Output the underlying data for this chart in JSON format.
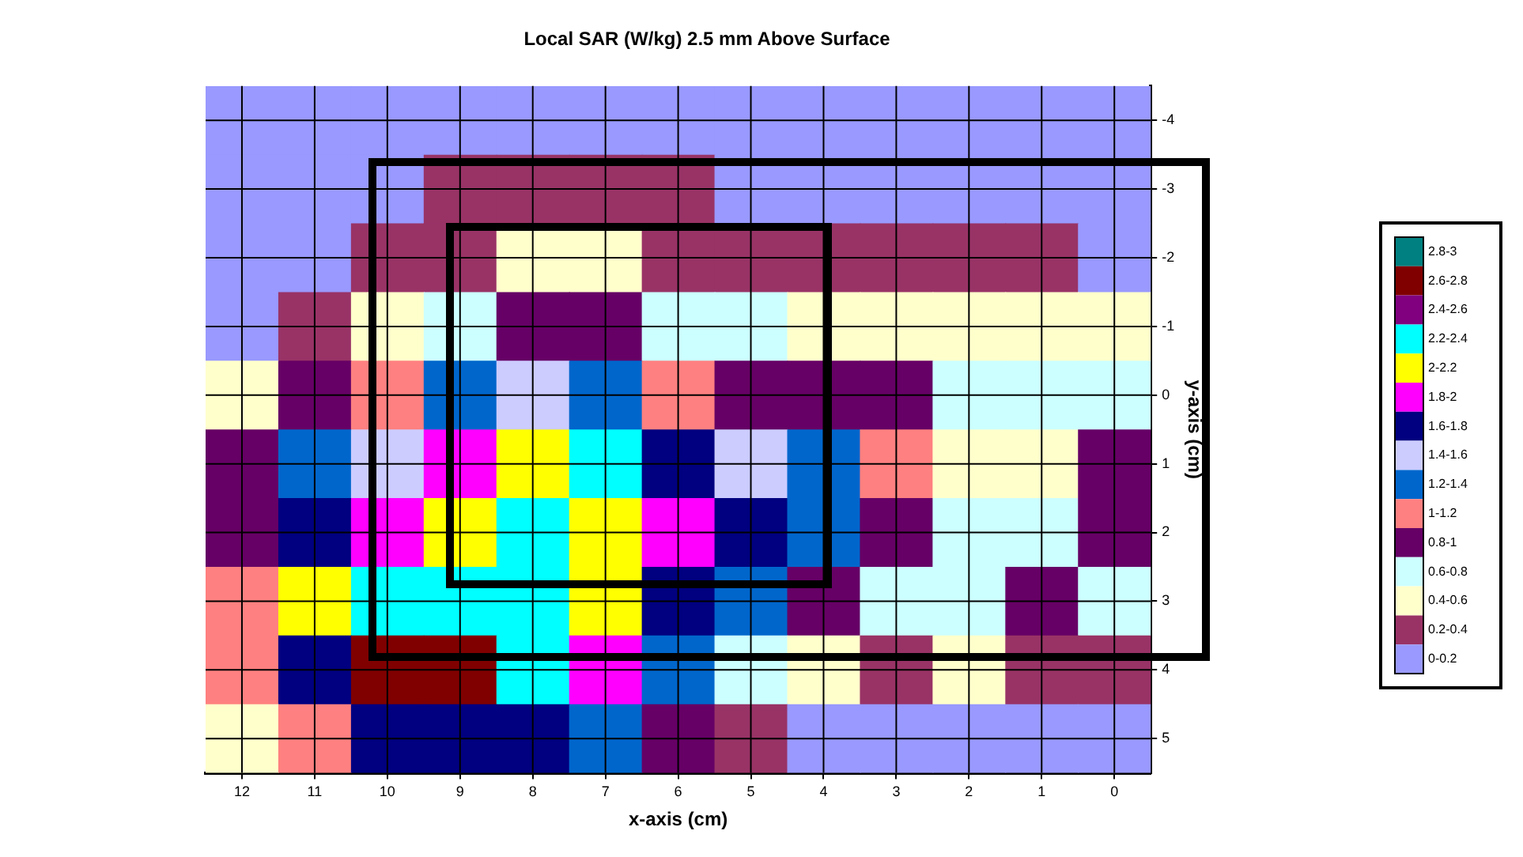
{
  "chart_data": {
    "type": "heatmap",
    "title": "Local SAR (W/kg) 2.5 mm Above Surface",
    "xlabel": "x-axis (cm)",
    "ylabel": "y-axis (cm)",
    "categories": [
      "12",
      "11",
      "10",
      "9",
      "8",
      "7",
      "6",
      "5",
      "4",
      "3",
      "2",
      "1",
      "0"
    ],
    "y_categories": [
      "-4",
      "-3",
      "-2",
      "-1",
      "0",
      "1",
      "2",
      "3",
      "4",
      "5"
    ],
    "cells": [
      [
        0.1,
        0.1,
        0.1,
        0.1,
        0.1,
        0.1,
        0.1,
        0.1,
        0.1,
        0.1,
        0.1,
        0.1,
        0.1
      ],
      [
        0.1,
        0.1,
        0.1,
        0.3,
        0.3,
        0.3,
        0.3,
        0.1,
        0.1,
        0.1,
        0.1,
        0.1,
        0.1
      ],
      [
        0.1,
        0.1,
        0.3,
        0.3,
        0.5,
        0.5,
        0.3,
        0.3,
        0.3,
        0.3,
        0.3,
        0.3,
        0.1
      ],
      [
        0.1,
        0.3,
        0.5,
        0.7,
        0.9,
        0.9,
        0.7,
        0.7,
        0.5,
        0.5,
        0.5,
        0.5,
        0.5
      ],
      [
        0.5,
        0.9,
        1.1,
        1.3,
        1.5,
        1.3,
        1.1,
        0.9,
        0.9,
        0.9,
        0.7,
        0.7,
        0.7
      ],
      [
        0.9,
        1.3,
        1.5,
        1.9,
        2.1,
        2.3,
        1.7,
        1.5,
        1.3,
        1.1,
        0.5,
        0.5,
        0.9
      ],
      [
        0.9,
        1.7,
        1.9,
        2.1,
        2.3,
        2.1,
        1.9,
        1.7,
        1.3,
        0.9,
        0.7,
        0.7,
        0.9
      ],
      [
        1.1,
        2.1,
        2.3,
        2.3,
        2.3,
        2.1,
        1.7,
        1.3,
        0.9,
        0.7,
        0.7,
        0.9,
        0.7
      ],
      [
        1.1,
        1.7,
        2.7,
        2.7,
        2.3,
        1.9,
        1.3,
        0.7,
        0.5,
        0.3,
        0.5,
        0.3,
        0.3
      ],
      [
        0.5,
        1.1,
        1.7,
        1.7,
        1.7,
        1.3,
        0.9,
        0.3,
        0.1,
        0.1,
        0.1,
        0.1,
        0.1
      ]
    ],
    "grid": true,
    "clim": [
      0,
      3
    ],
    "cticks": [
      {
        "value": 2.9,
        "label": "2.8-3"
      },
      {
        "value": 2.7,
        "label": "2.6-2.8"
      },
      {
        "value": 2.5,
        "label": "2.4-2.6"
      },
      {
        "value": 2.3,
        "label": "2.2-2.4"
      },
      {
        "value": 2.1,
        "label": "2-2.2"
      },
      {
        "value": 1.9,
        "label": "1.8-2"
      },
      {
        "value": 1.7,
        "label": "1.6-1.8"
      },
      {
        "value": 1.5,
        "label": "1.4-1.6"
      },
      {
        "value": 1.3,
        "label": "1.2-1.4"
      },
      {
        "value": 1.1,
        "label": "1-1.2"
      },
      {
        "value": 0.9,
        "label": "0.8-1"
      },
      {
        "value": 0.7,
        "label": "0.6-0.8"
      },
      {
        "value": 0.5,
        "label": "0.4-0.6"
      },
      {
        "value": 0.3,
        "label": "0.2-0.4"
      },
      {
        "value": 0.1,
        "label": "0-0.2"
      }
    ],
    "colors": [
      "#008080",
      "#800000",
      "#800080",
      "#00ffff",
      "#ffff00",
      "#ff00ff",
      "#000080",
      "#ccccff",
      "#0066cc",
      "#ff8080",
      "#660066",
      "#ccffff",
      "#ffffcc",
      "#993366",
      "#9999ff"
    ]
  }
}
